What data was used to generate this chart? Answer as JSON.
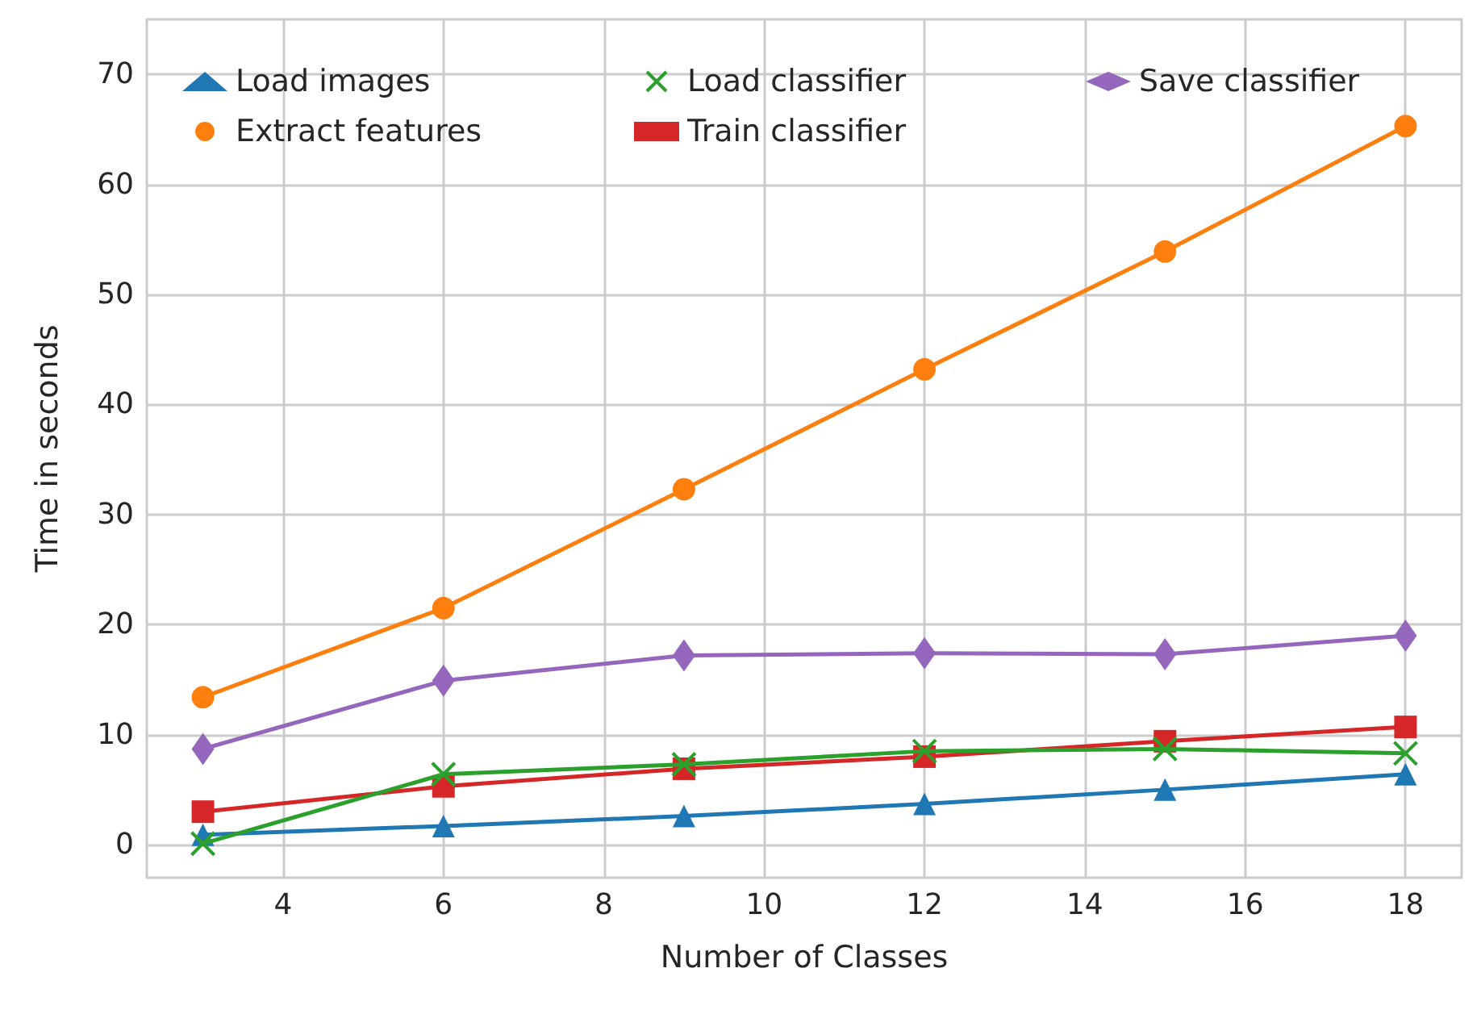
{
  "chart_data": {
    "type": "line",
    "xlabel": "Number of Classes",
    "ylabel": "Time in seconds",
    "x": [
      3,
      6,
      9,
      12,
      15,
      18
    ],
    "xlim": [
      2.3,
      18.7
    ],
    "ylim": [
      -3,
      75
    ],
    "xticks": [
      4,
      6,
      8,
      10,
      12,
      14,
      16,
      18
    ],
    "yticks": [
      0,
      10,
      20,
      30,
      40,
      50,
      60,
      70
    ],
    "grid": true,
    "legend": "top left",
    "line_style": "solid",
    "series": [
      {
        "name": "Load images",
        "color": "#1f77b4",
        "marker": "triangle",
        "values": [
          0.9,
          1.7,
          2.6,
          3.7,
          5.0,
          6.4
        ]
      },
      {
        "name": "Extract features",
        "color": "#ff7f0e",
        "marker": "circle",
        "values": [
          13.4,
          21.5,
          32.3,
          43.2,
          53.9,
          65.3
        ]
      },
      {
        "name": "Load classifier",
        "color": "#2ca02c",
        "marker": "cross",
        "values": [
          0.1,
          6.4,
          7.3,
          8.5,
          8.7,
          8.3
        ]
      },
      {
        "name": "Train classifier",
        "color": "#d62728",
        "marker": "square",
        "values": [
          3.0,
          5.3,
          6.9,
          8.0,
          9.4,
          10.7
        ]
      },
      {
        "name": "Save classifier",
        "color": "#9467bd",
        "marker": "diamond",
        "values": [
          8.7,
          14.9,
          17.2,
          17.4,
          17.3,
          19.0
        ]
      }
    ]
  }
}
